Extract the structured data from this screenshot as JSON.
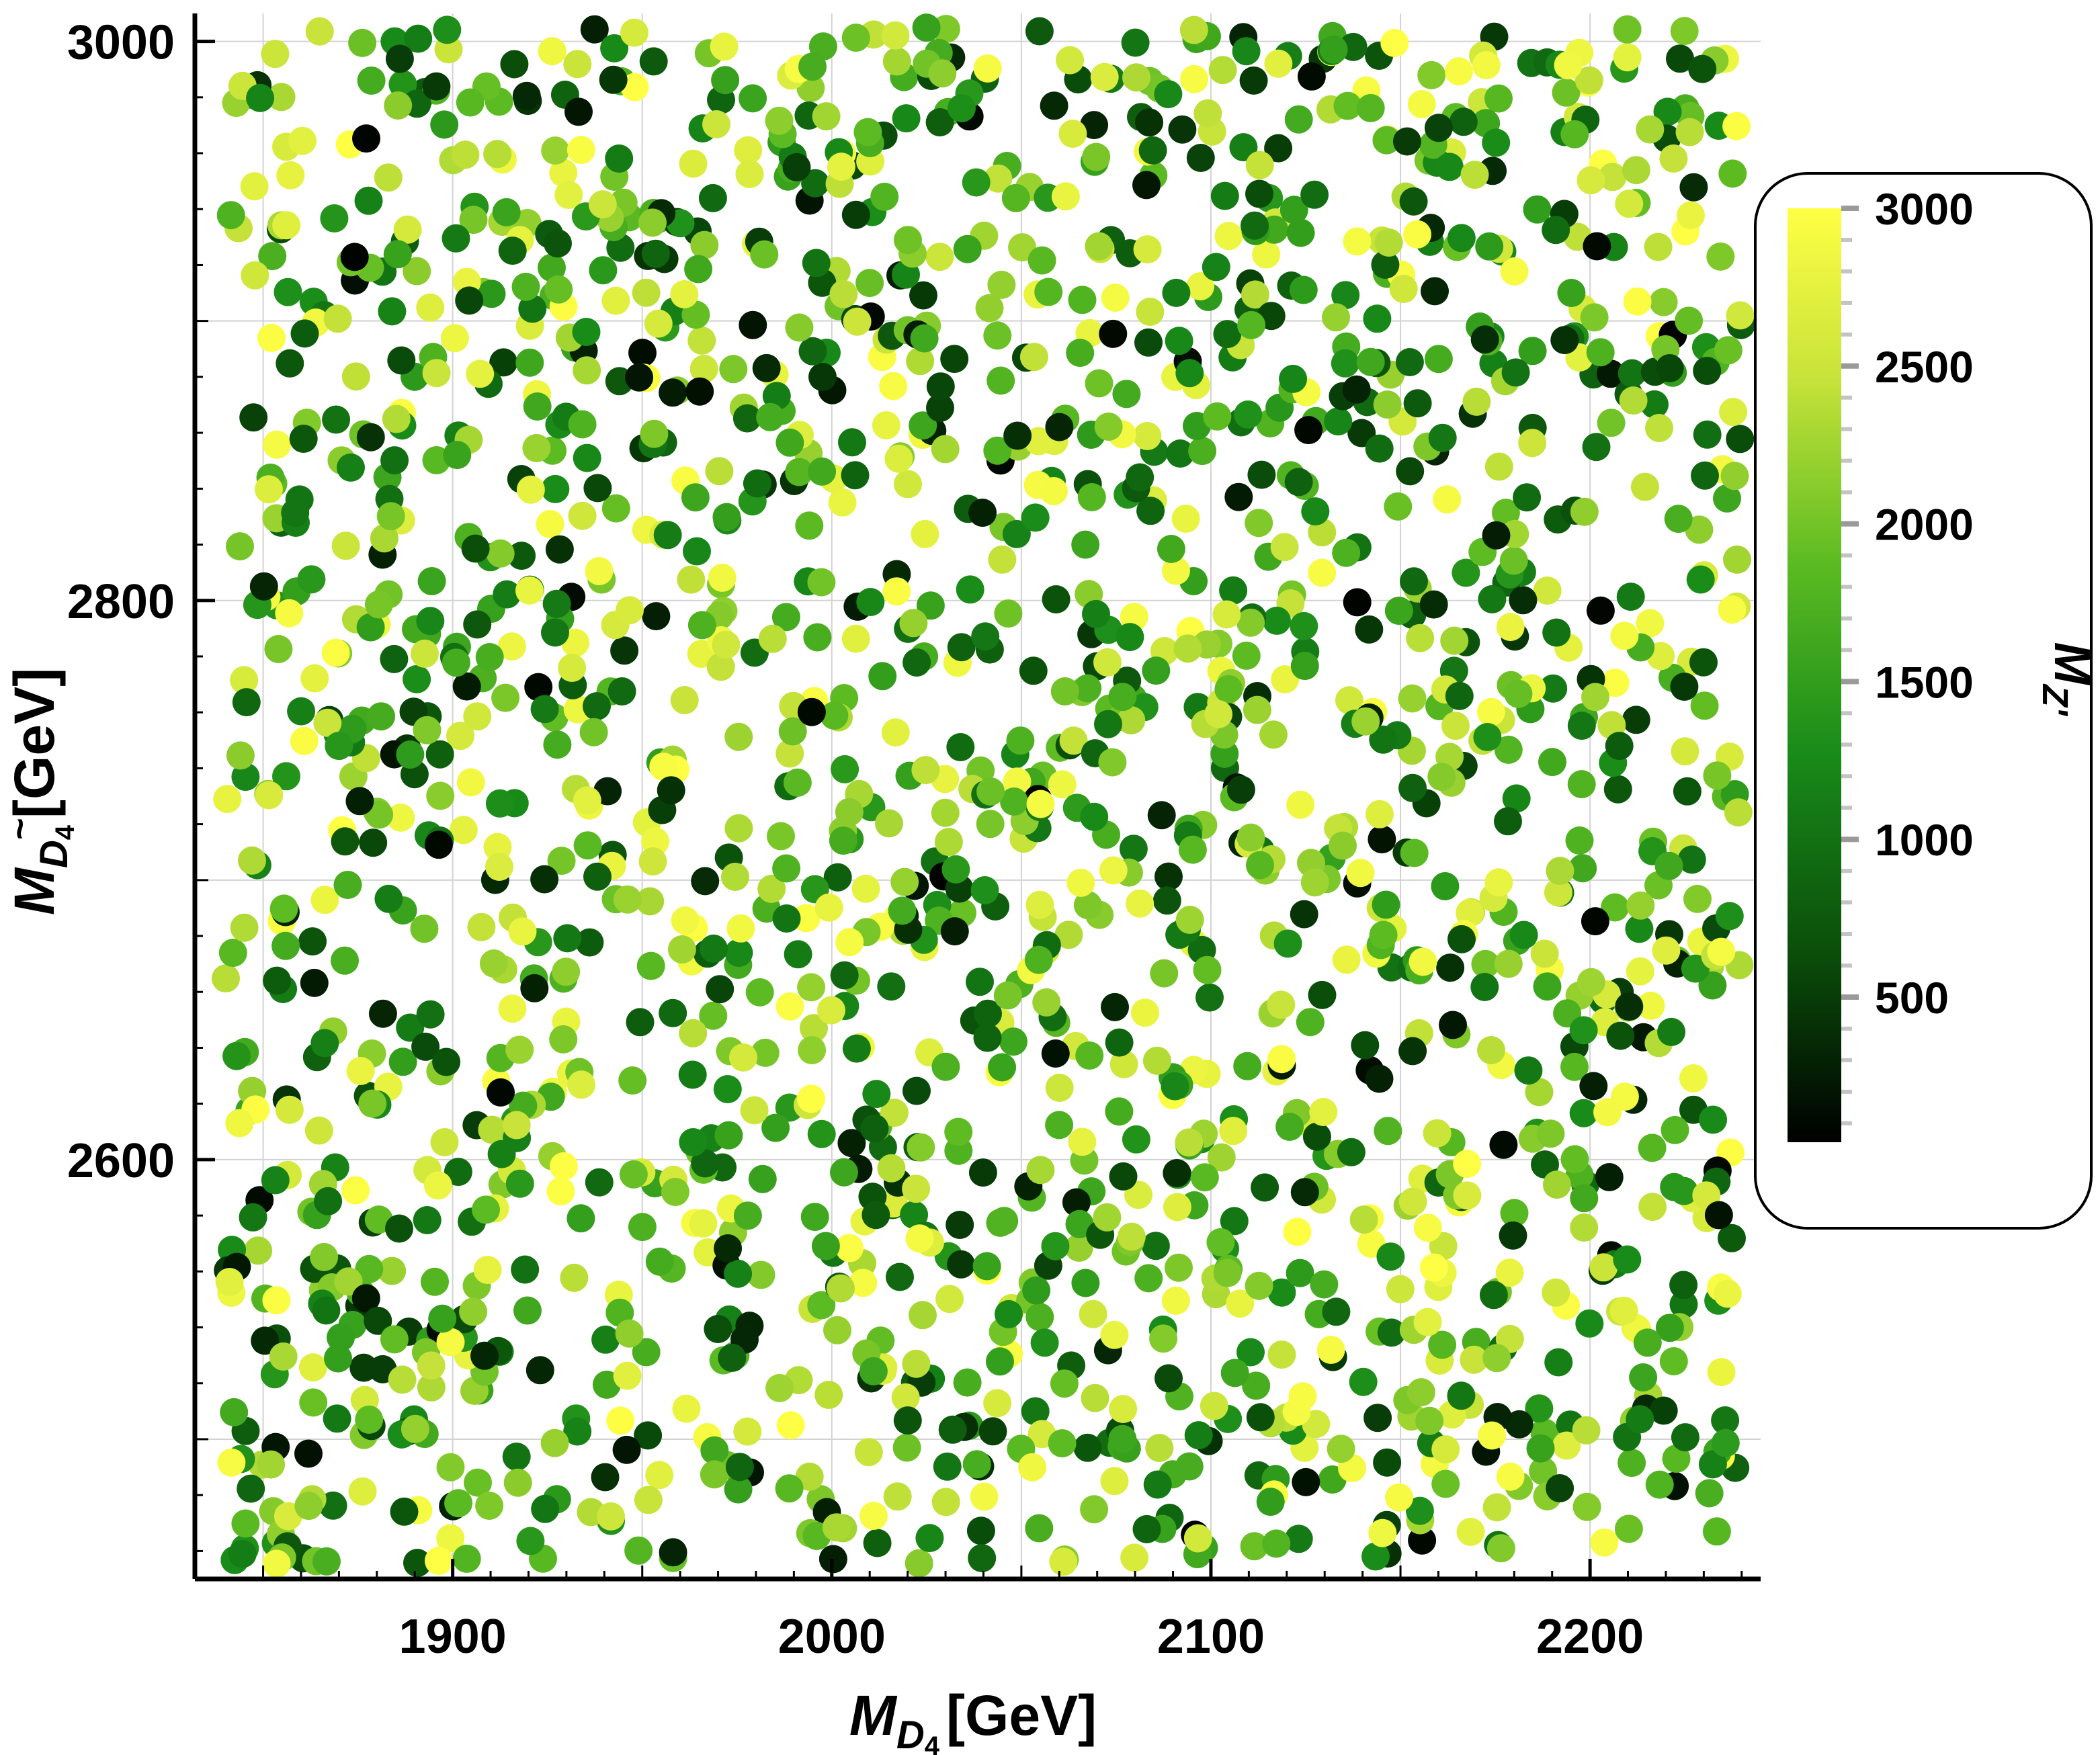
{
  "chart_data": {
    "type": "scatter",
    "title": "",
    "xlabel": {
      "main": "M",
      "sub": "D",
      "subsub": "4",
      "unit": "[GeV]"
    },
    "ylabel": {
      "main": "M",
      "sub": "D",
      "subsub": "4",
      "accent": "~",
      "unit": "[GeV]"
    },
    "xlim": [
      1832,
      2245
    ],
    "ylim": [
      2450,
      3010
    ],
    "x_ticks": [
      1900,
      2000,
      2100,
      2200
    ],
    "y_ticks": [
      2600,
      2800,
      3000
    ],
    "x_tick_labels": [
      "1900",
      "2000",
      "2100",
      "2200"
    ],
    "y_tick_labels": [
      "2600",
      "2800",
      "3000"
    ],
    "grid": true,
    "point_count": 2000,
    "point_distribution": "uniform random scan: x in [1840, 2240], y in [2455, 3005]",
    "colorbar": {
      "label": {
        "main": "M",
        "sub": "Z'"
      },
      "range": [
        40,
        3000
      ],
      "ticks": [
        500,
        1000,
        1500,
        2000,
        2500,
        3000
      ],
      "tick_labels": [
        "500",
        "1000",
        "1500",
        "2000",
        "2500",
        "3000"
      ],
      "colors": [
        "#000000",
        "#0a4d0a",
        "#198c19",
        "#5cbb22",
        "#c8e33a",
        "#ffff44"
      ]
    }
  }
}
